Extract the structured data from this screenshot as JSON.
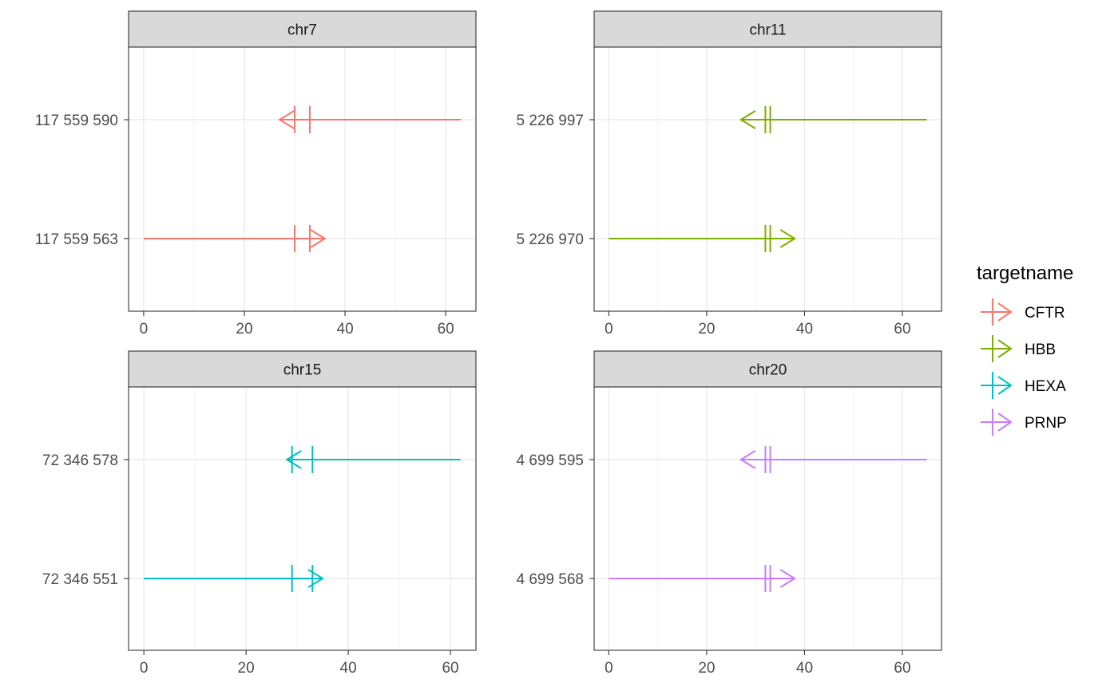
{
  "legend": {
    "title": "targetname",
    "items": [
      {
        "label": "CFTR",
        "color": "#F8766D"
      },
      {
        "label": "HBB",
        "color": "#7CAE00"
      },
      {
        "label": "HEXA",
        "color": "#00BFC4"
      },
      {
        "label": "PRNP",
        "color": "#C77CFF"
      }
    ]
  },
  "chart_data": {
    "type": "line",
    "description_free": true,
    "x_ticks": [
      0,
      20,
      40,
      60
    ],
    "x_tick_labels": [
      "0",
      "20",
      "40",
      "60"
    ],
    "grid": true,
    "legend_position": "right",
    "panels": [
      {
        "title": "chr7",
        "target": "CFTR",
        "color": "#F8766D",
        "xlim": [
          -3,
          66
        ],
        "y_tick_labels": [
          "117 559 590",
          "117 559 563"
        ],
        "segments": [
          {
            "y": "117 559 590",
            "x_start": 63,
            "x_end": 27,
            "direction": "reverse",
            "markers": [
              30,
              33
            ]
          },
          {
            "y": "117 559 563",
            "x_start": 0,
            "x_end": 36,
            "direction": "forward",
            "markers": [
              30,
              33
            ]
          }
        ]
      },
      {
        "title": "chr11",
        "target": "HBB",
        "color": "#7CAE00",
        "xlim": [
          -3,
          68
        ],
        "y_tick_labels": [
          "5 226 997",
          "5 226 970"
        ],
        "segments": [
          {
            "y": "5 226 997",
            "x_start": 65,
            "x_end": 27,
            "direction": "reverse",
            "markers": [
              32,
              33
            ]
          },
          {
            "y": "5 226 970",
            "x_start": 0,
            "x_end": 38,
            "direction": "forward",
            "markers": [
              32,
              33
            ]
          }
        ]
      },
      {
        "title": "chr15",
        "target": "HEXA",
        "color": "#00BFC4",
        "xlim": [
          -3,
          65
        ],
        "y_tick_labels": [
          "72 346 578",
          "72 346 551"
        ],
        "segments": [
          {
            "y": "72 346 578",
            "x_start": 62,
            "x_end": 28,
            "direction": "reverse",
            "markers": [
              29,
              33
            ]
          },
          {
            "y": "72 346 551",
            "x_start": 0,
            "x_end": 35,
            "direction": "forward",
            "markers": [
              29,
              33
            ]
          }
        ]
      },
      {
        "title": "chr20",
        "target": "PRNP",
        "color": "#C77CFF",
        "xlim": [
          -3,
          68
        ],
        "y_tick_labels": [
          "4 699 595",
          "4 699 568"
        ],
        "segments": [
          {
            "y": "4 699 595",
            "x_start": 65,
            "x_end": 27,
            "direction": "reverse",
            "markers": [
              32,
              33
            ]
          },
          {
            "y": "4 699 568",
            "x_start": 0,
            "x_end": 38,
            "direction": "forward",
            "markers": [
              32,
              33
            ]
          }
        ]
      }
    ]
  }
}
